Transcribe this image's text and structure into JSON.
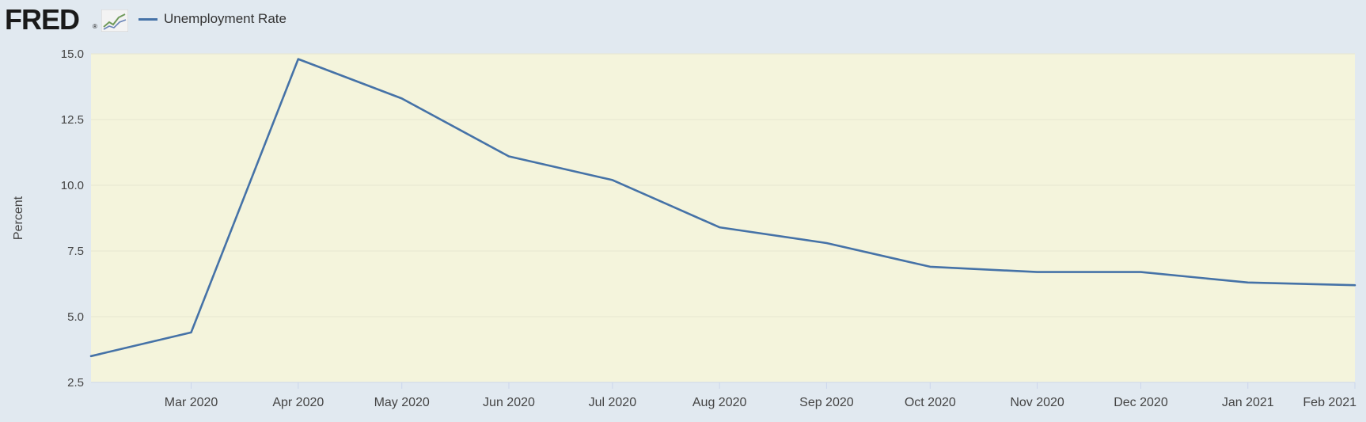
{
  "header": {
    "logo_text": "FRED",
    "logo_reg": "®",
    "legend_label": "Unemployment Rate"
  },
  "colors": {
    "series": "#4572a7",
    "plot_bg": "#f4f4dc",
    "page_bg": "#e1e9f0",
    "grid": "#e6e6d0"
  },
  "chart_data": {
    "type": "line",
    "xlabel": "",
    "ylabel": "Percent",
    "ylim": [
      2.5,
      15.0
    ],
    "yticks": [
      2.5,
      5.0,
      7.5,
      10.0,
      12.5,
      15.0
    ],
    "ytick_labels": [
      "2.5",
      "5.0",
      "7.5",
      "10.0",
      "12.5",
      "15.0"
    ],
    "x_tick_labels": [
      "Mar 2020",
      "Apr 2020",
      "May 2020",
      "Jun 2020",
      "Jul 2020",
      "Aug 2020",
      "Sep 2020",
      "Oct 2020",
      "Nov 2020",
      "Dec 2020",
      "Jan 2021",
      "Feb 2021"
    ],
    "x_tick_dates": [
      "2020-03-01",
      "2020-04-01",
      "2020-05-01",
      "2020-06-01",
      "2020-07-01",
      "2020-08-01",
      "2020-09-01",
      "2020-10-01",
      "2020-11-01",
      "2020-12-01",
      "2021-01-01",
      "2021-02-01"
    ],
    "x_range": [
      "2020-02-01",
      "2021-02-01"
    ],
    "grid": true,
    "legend_position": "top-left",
    "series": [
      {
        "name": "Unemployment Rate",
        "x": [
          "2020-02-01",
          "2020-03-01",
          "2020-04-01",
          "2020-05-01",
          "2020-06-01",
          "2020-07-01",
          "2020-08-01",
          "2020-09-01",
          "2020-10-01",
          "2020-11-01",
          "2020-12-01",
          "2021-01-01",
          "2021-02-01"
        ],
        "values": [
          3.5,
          4.4,
          14.8,
          13.3,
          11.1,
          10.2,
          8.4,
          7.8,
          6.9,
          6.7,
          6.7,
          6.3,
          6.2
        ]
      }
    ]
  }
}
